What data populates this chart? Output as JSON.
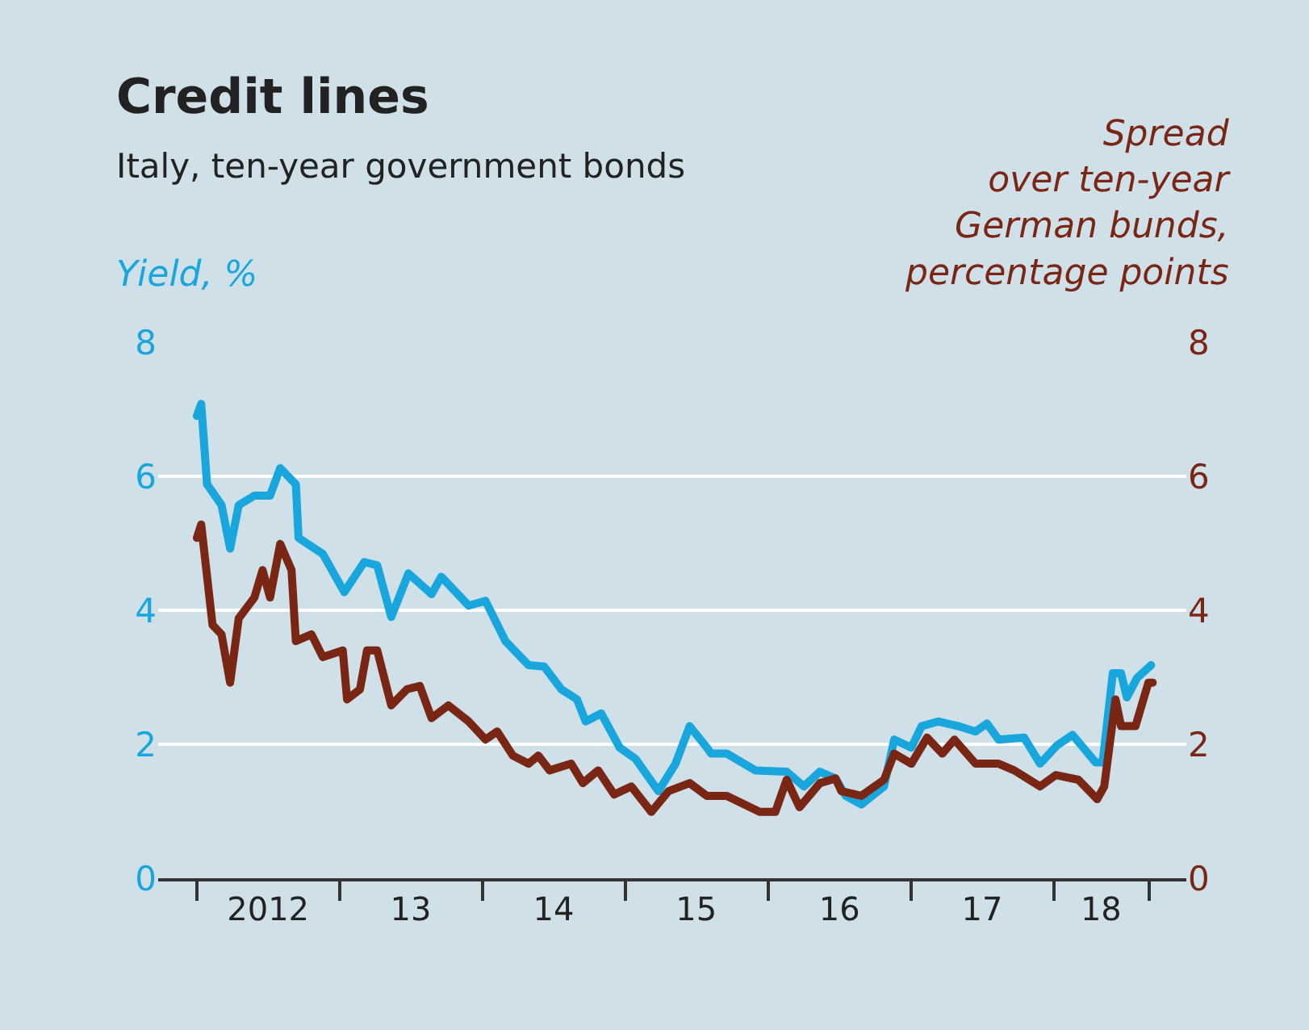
{
  "chart_data": {
    "type": "line",
    "title": "Credit lines",
    "subtitle": "Italy, ten-year government bonds",
    "ylabel": "Yield, %",
    "y2label": "Spread\nover ten-year\nGerman bunds,\npercentage points",
    "xlim": [
      "2011-09-24",
      "2018-12-05"
    ],
    "xticks": [
      {
        "value": "2012-01-01",
        "label": null
      },
      {
        "value": "2012-07-01",
        "label": "2012"
      },
      {
        "value": "2013-01-01",
        "label": null
      },
      {
        "value": "2013-07-01",
        "label": "13"
      },
      {
        "value": "2014-01-01",
        "label": null
      },
      {
        "value": "2014-07-01",
        "label": "14"
      },
      {
        "value": "2015-01-01",
        "label": null
      },
      {
        "value": "2015-07-01",
        "label": "15"
      },
      {
        "value": "2016-01-01",
        "label": null
      },
      {
        "value": "2016-07-01",
        "label": "16"
      },
      {
        "value": "2017-01-01",
        "label": null
      },
      {
        "value": "2017-07-01",
        "label": "17"
      },
      {
        "value": "2018-01-01",
        "label": null
      },
      {
        "value": "2018-05-01",
        "label": "18"
      },
      {
        "value": "2018-09-02",
        "label": null
      }
    ],
    "ylim": [
      0,
      8
    ],
    "yticks": [
      0,
      2,
      4,
      6,
      8
    ],
    "y2lim": [
      0,
      8
    ],
    "y2ticks": [
      0,
      2,
      4,
      6,
      8
    ],
    "grid": "y",
    "marker": "none",
    "line_style": "solid",
    "series": [
      {
        "color": "#19a6dc",
        "x": [
          "2012-01-01",
          "2012-01-12",
          "2012-01-27",
          "2012-03-04",
          "2012-03-26",
          "2012-04-17",
          "2012-05-27",
          "2012-07-06",
          "2012-08-01",
          "2012-09-10",
          "2012-09-17",
          "2012-11-18",
          "2013-01-12",
          "2013-03-04",
          "2013-04-06",
          "2013-05-12",
          "2013-06-25",
          "2013-08-23",
          "2013-09-17",
          "2013-11-26",
          "2014-01-08",
          "2014-02-28",
          "2014-04-28",
          "2014-06-07",
          "2014-07-21",
          "2014-08-30",
          "2014-09-21",
          "2014-10-31",
          "2014-12-17",
          "2015-01-27",
          "2015-03-26",
          "2015-05-09",
          "2015-06-14",
          "2015-07-28",
          "2015-08-08",
          "2015-09-17",
          "2015-11-29",
          "2016-02-17",
          "2016-04-01",
          "2016-05-12",
          "2016-06-21",
          "2016-07-17",
          "2016-08-26",
          "2016-10-23",
          "2016-11-18",
          "2017-01-01",
          "2017-01-27",
          "2017-03-11",
          "2017-05-01",
          "2017-06-14",
          "2017-07-13",
          "2017-08-12",
          "2017-10-16",
          "2017-11-26",
          "2018-01-08",
          "2018-02-17",
          "2018-04-17",
          "2018-05-05",
          "2018-05-31",
          "2018-06-21",
          "2018-07-06",
          "2018-08-01",
          "2018-09-06"
        ],
        "values": [
          6.9,
          7.08,
          5.88,
          5.57,
          4.92,
          5.57,
          5.71,
          5.71,
          6.12,
          5.88,
          5.08,
          4.84,
          4.27,
          4.72,
          4.67,
          3.9,
          4.55,
          4.24,
          4.5,
          4.07,
          4.14,
          3.54,
          3.18,
          3.16,
          2.82,
          2.67,
          2.34,
          2.46,
          1.95,
          1.78,
          1.3,
          1.71,
          2.27,
          1.95,
          1.86,
          1.86,
          1.61,
          1.59,
          1.37,
          1.59,
          1.49,
          1.23,
          1.1,
          1.37,
          2.07,
          1.95,
          2.27,
          2.34,
          2.27,
          2.19,
          2.31,
          2.07,
          2.1,
          1.71,
          1.98,
          2.14,
          1.73,
          1.73,
          3.06,
          3.06,
          2.7,
          2.99,
          3.18
        ]
      },
      {
        "color": "#7a2614",
        "axis": "y2",
        "x": [
          "2012-01-01",
          "2012-01-12",
          "2012-02-10",
          "2012-03-04",
          "2012-03-26",
          "2012-04-17",
          "2012-05-27",
          "2012-06-17",
          "2012-07-06",
          "2012-08-01",
          "2012-08-30",
          "2012-09-10",
          "2012-10-20",
          "2012-11-18",
          "2013-01-08",
          "2013-01-19",
          "2013-02-21",
          "2013-03-11",
          "2013-04-06",
          "2013-05-12",
          "2013-06-21",
          "2013-07-24",
          "2013-08-23",
          "2013-10-05",
          "2013-11-26",
          "2014-01-08",
          "2014-02-07",
          "2014-03-19",
          "2014-04-28",
          "2014-05-23",
          "2014-06-21",
          "2014-08-15",
          "2014-09-14",
          "2014-10-23",
          "2014-12-03",
          "2015-01-16",
          "2015-03-08",
          "2015-04-21",
          "2015-06-14",
          "2015-07-28",
          "2015-08-08",
          "2015-09-17",
          "2015-12-10",
          "2016-01-19",
          "2016-02-17",
          "2016-03-21",
          "2016-05-12",
          "2016-06-21",
          "2016-07-06",
          "2016-08-26",
          "2016-10-23",
          "2016-11-18",
          "2017-01-01",
          "2017-02-10",
          "2017-03-21",
          "2017-04-21",
          "2017-06-14",
          "2017-08-12",
          "2017-09-21",
          "2017-11-26",
          "2018-01-05",
          "2018-03-04",
          "2018-04-21",
          "2018-05-09",
          "2018-06-07",
          "2018-06-21",
          "2018-07-28",
          "2018-08-30",
          "2018-09-10"
        ],
        "values": [
          5.08,
          5.28,
          3.78,
          3.64,
          2.92,
          3.88,
          4.19,
          4.6,
          4.19,
          4.99,
          4.6,
          3.54,
          3.64,
          3.3,
          3.4,
          2.67,
          2.82,
          3.4,
          3.4,
          2.58,
          2.82,
          2.87,
          2.39,
          2.58,
          2.34,
          2.07,
          2.19,
          1.83,
          1.71,
          1.83,
          1.61,
          1.71,
          1.42,
          1.61,
          1.25,
          1.37,
          0.99,
          1.3,
          1.42,
          1.23,
          1.23,
          1.23,
          0.99,
          0.99,
          1.47,
          1.06,
          1.42,
          1.49,
          1.3,
          1.23,
          1.47,
          1.86,
          1.71,
          2.1,
          1.86,
          2.07,
          1.71,
          1.71,
          1.61,
          1.37,
          1.54,
          1.47,
          1.18,
          1.37,
          2.67,
          2.27,
          2.27,
          2.92,
          2.92
        ]
      }
    ]
  }
}
